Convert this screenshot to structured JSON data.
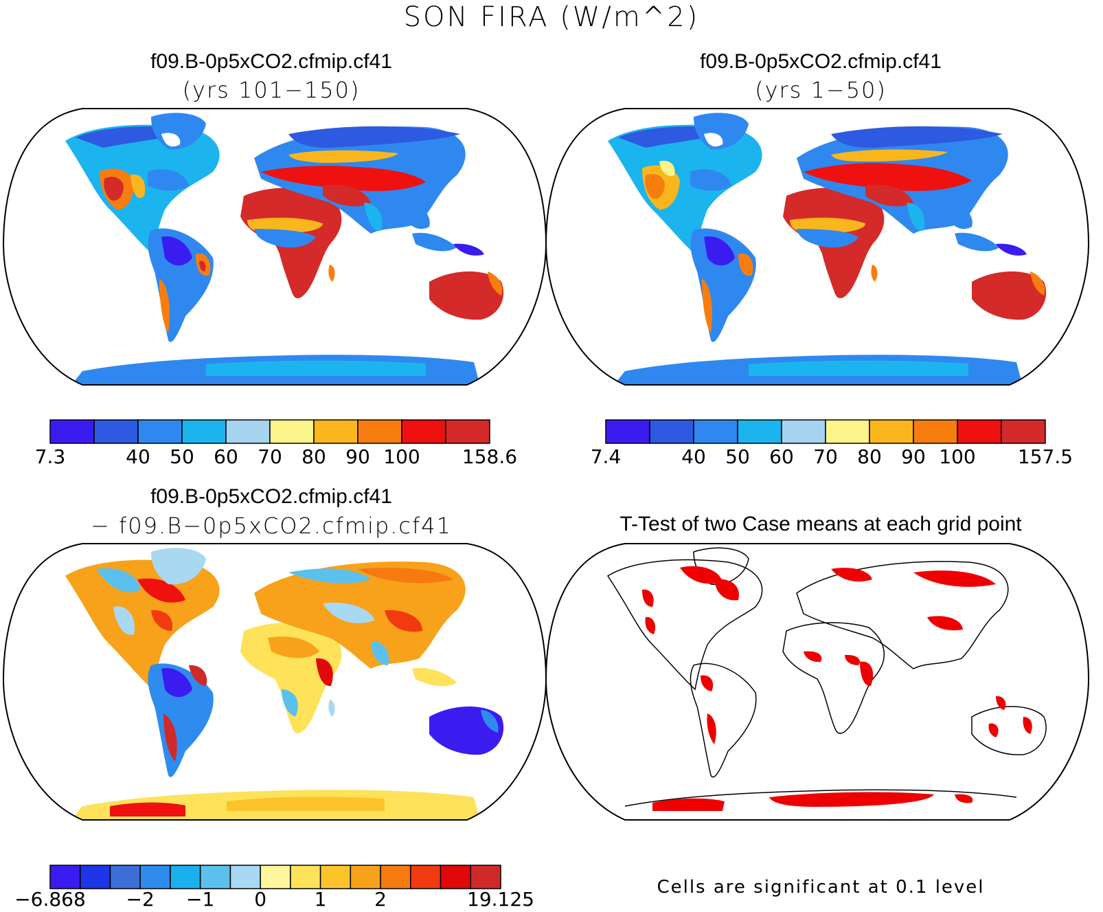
{
  "title": "SON FIRA (W/m^2)",
  "panels": [
    {
      "id": "a",
      "title": "f09.B-0p5xCO2.cfmip.cf41",
      "subtitle": "(yrs 101−150)"
    },
    {
      "id": "b",
      "title": "f09.B-0p5xCO2.cfmip.cf41",
      "subtitle": "(yrs 1−50)"
    },
    {
      "id": "c",
      "title": "f09.B-0p5xCO2.cfmip.cf41",
      "subtitle": "− f09.B−0p5xCO2.cfmip.cf41"
    },
    {
      "id": "d",
      "title": "T-Test of two Case means at each grid point",
      "subtitle": ""
    }
  ],
  "colorbars": {
    "a": {
      "colors": [
        "#3b1cf0",
        "#2d5ae0",
        "#2f88ef",
        "#1cb4ef",
        "#a6d4f0",
        "#fdf48a",
        "#fbb61e",
        "#f77e0e",
        "#ef1010",
        "#d42a2a"
      ],
      "labels": [
        "7.3",
        "",
        "40",
        "50",
        "60",
        "70",
        "80",
        "90",
        "100",
        "",
        "158.6"
      ]
    },
    "b": {
      "colors": [
        "#3b1cf0",
        "#2d5ae0",
        "#2f88ef",
        "#1cb4ef",
        "#a6d4f0",
        "#fdf48a",
        "#fbb61e",
        "#f77e0e",
        "#ef1010",
        "#d42a2a"
      ],
      "labels": [
        "7.4",
        "",
        "40",
        "50",
        "60",
        "70",
        "80",
        "90",
        "100",
        "",
        "157.5"
      ]
    },
    "c": {
      "colors": [
        "#3b1cf0",
        "#1f35e8",
        "#3d6ed8",
        "#2e8cef",
        "#1ab0ef",
        "#5cc0ef",
        "#a8d8f2",
        "#fff59a",
        "#fde25a",
        "#fbc42a",
        "#f7a21a",
        "#f77a10",
        "#f23a10",
        "#e00808",
        "#cf2a2a"
      ],
      "labels": [
        "−6.868",
        "",
        "",
        "−2",
        "",
        "−1",
        "",
        "0",
        "",
        "1",
        "",
        "2",
        "",
        "",
        "",
        "19.125"
      ]
    }
  },
  "significance_note": "Cells are significant at 0.1 level",
  "map_colors": {
    "ocean": "#ffffff",
    "outline": "#000000",
    "significant": "#ee0000"
  }
}
